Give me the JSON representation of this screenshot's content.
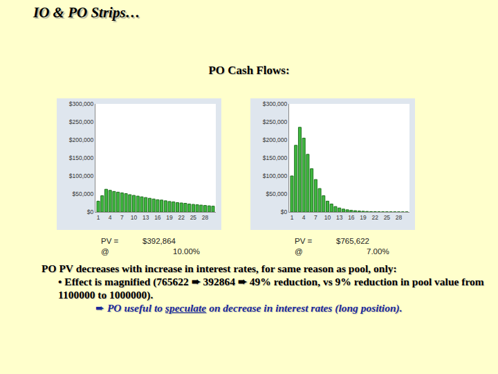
{
  "heading": "IO & PO Strips…",
  "subheading": "PO Cash Flows:",
  "chart_data": [
    {
      "type": "bar",
      "x": [
        1,
        2,
        3,
        4,
        5,
        6,
        7,
        8,
        9,
        10,
        11,
        12,
        13,
        14,
        15,
        16,
        17,
        18,
        19,
        20,
        21,
        22,
        23,
        24,
        25,
        26,
        27,
        28,
        29,
        30
      ],
      "values": [
        30000,
        45000,
        63000,
        60000,
        57000,
        55000,
        53000,
        51000,
        48000,
        46000,
        44000,
        42000,
        40000,
        38000,
        36000,
        34000,
        33000,
        31000,
        29000,
        28000,
        26000,
        25000,
        24000,
        22000,
        21000,
        20000,
        19000,
        18000,
        17000,
        16000
      ],
      "color": "#3fb83f",
      "xlim": [
        0.3,
        30.7
      ],
      "xticks": [
        1,
        4,
        7,
        10,
        13,
        16,
        19,
        22,
        25,
        28
      ],
      "ylim": [
        0,
        300000
      ],
      "yticks": [
        {
          "value": 0,
          "label": "$0"
        },
        {
          "value": 50000,
          "label": "$50,000"
        },
        {
          "value": 100000,
          "label": "$100,000"
        },
        {
          "value": 150000,
          "label": "$150,000"
        },
        {
          "value": 200000,
          "label": "$200,000"
        },
        {
          "value": 250000,
          "label": "$250,000"
        },
        {
          "value": 300000,
          "label": "$300,000"
        }
      ],
      "grid": false,
      "annotations": [
        "PV =",
        "$392,864",
        "@",
        "10.00%"
      ]
    },
    {
      "type": "bar",
      "x": [
        1,
        2,
        3,
        4,
        5,
        6,
        7,
        8,
        9,
        10,
        11,
        12,
        13,
        14,
        15,
        16,
        17,
        18,
        19,
        20,
        21,
        22,
        23,
        24,
        25,
        26,
        27,
        28,
        29,
        30
      ],
      "values": [
        100000,
        185000,
        235000,
        205000,
        160000,
        120000,
        90000,
        65000,
        45000,
        30000,
        22000,
        15000,
        11000,
        8000,
        6000,
        4500,
        3500,
        2500,
        2000,
        1500,
        1000,
        800,
        600,
        500,
        400,
        300,
        250,
        200,
        150,
        100
      ],
      "color": "#3fb83f",
      "xlim": [
        0.3,
        30.7
      ],
      "xticks": [
        1,
        4,
        7,
        10,
        13,
        16,
        19,
        22,
        25,
        28
      ],
      "ylim": [
        0,
        300000
      ],
      "yticks": [
        {
          "value": 0,
          "label": "$0"
        },
        {
          "value": 50000,
          "label": "$50,000"
        },
        {
          "value": 100000,
          "label": "$100,000"
        },
        {
          "value": 150000,
          "label": "$150,000"
        },
        {
          "value": 200000,
          "label": "$200,000"
        },
        {
          "value": 250000,
          "label": "$250,000"
        },
        {
          "value": 300000,
          "label": "$300,000"
        }
      ],
      "grid": false,
      "annotations": [
        "PV =",
        "$765,622",
        "@",
        "7.00%"
      ]
    }
  ],
  "notes": {
    "lead": "PO PV decreases with increase in interest rates, for same reason as pool, only:",
    "bullet": "• Effect is magnified (765622 ➨ 392864 ➨ 49% reduction, vs 9% reduction in pool value from 1100000 to 1000000).",
    "conclusion": [
      "➨",
      " PO useful to ",
      "speculate",
      " on decrease in interest rates (long position)."
    ]
  }
}
